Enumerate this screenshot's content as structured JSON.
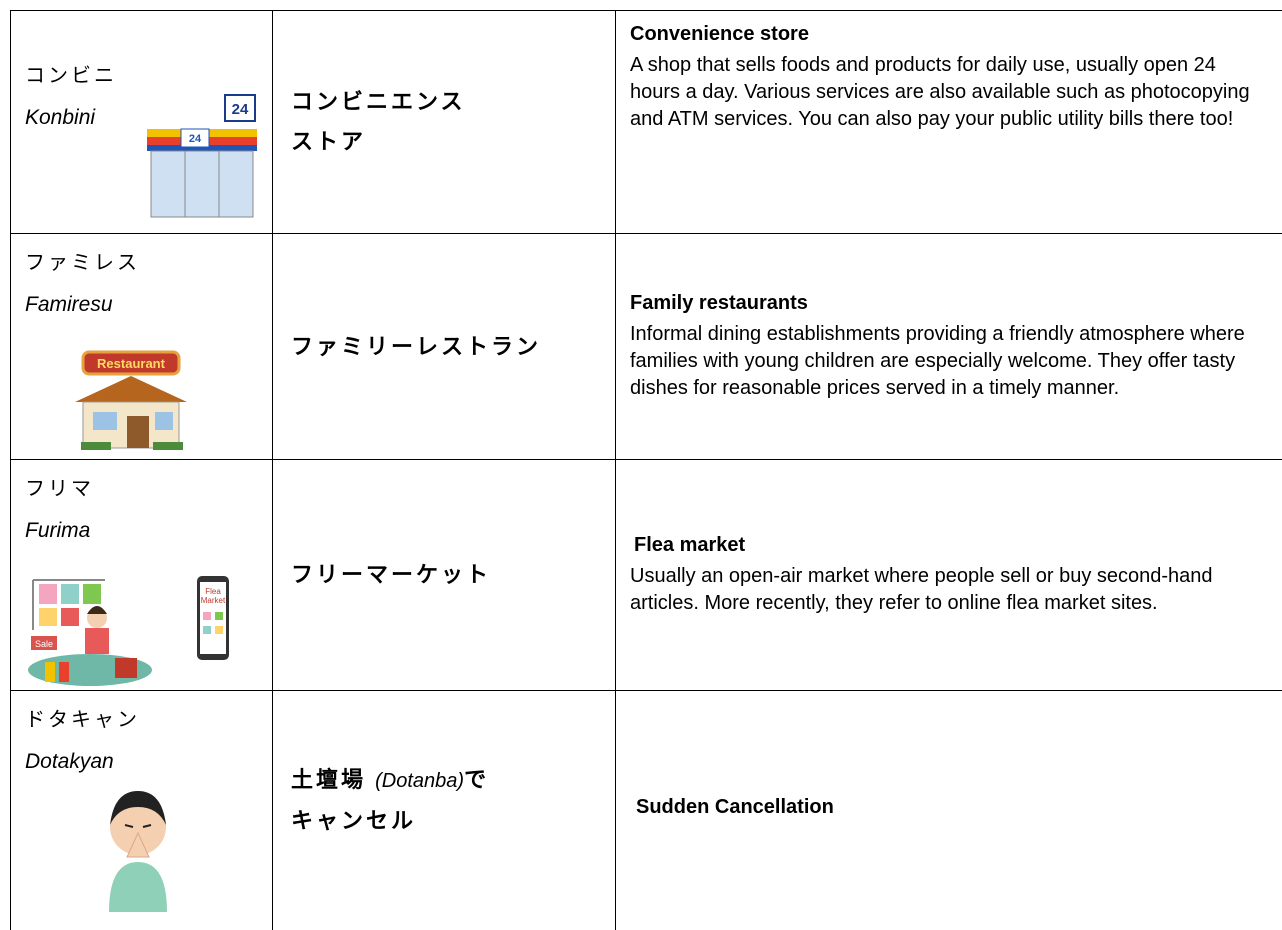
{
  "table": {
    "rows": [
      {
        "term": "コンビニ",
        "romaji": "Konbini",
        "full": [
          "コンビニエンス",
          "ストア"
        ],
        "heading": "Convenience store",
        "description": "A shop that sells foods and products for daily use, usually open 24 hours a day. Various services are also available such as photocopying and ATM services. You can also pay your public utility bills there too!"
      },
      {
        "term": "ファミレス",
        "romaji": "Famiresu",
        "full": [
          "ファミリーレストラン"
        ],
        "heading": "Family restaurants",
        "description": "Informal dining establishments providing a friendly atmosphere where families with young children are especially welcome. They offer tasty dishes for reasonable prices served in a timely manner."
      },
      {
        "term": "フリマ",
        "romaji": "Furima",
        "full": [
          "フリーマーケット"
        ],
        "heading": "Flea market",
        "description": "Usually an open-air market where people sell or buy second-hand articles. More recently, they refer to online flea market sites."
      },
      {
        "term": "ドタキャン",
        "romaji": "Dotakyan",
        "full": [
          "土壇場",
          "(Dotanba)",
          "で",
          "キャンセル"
        ],
        "heading": "Sudden Cancellation"
      }
    ]
  }
}
